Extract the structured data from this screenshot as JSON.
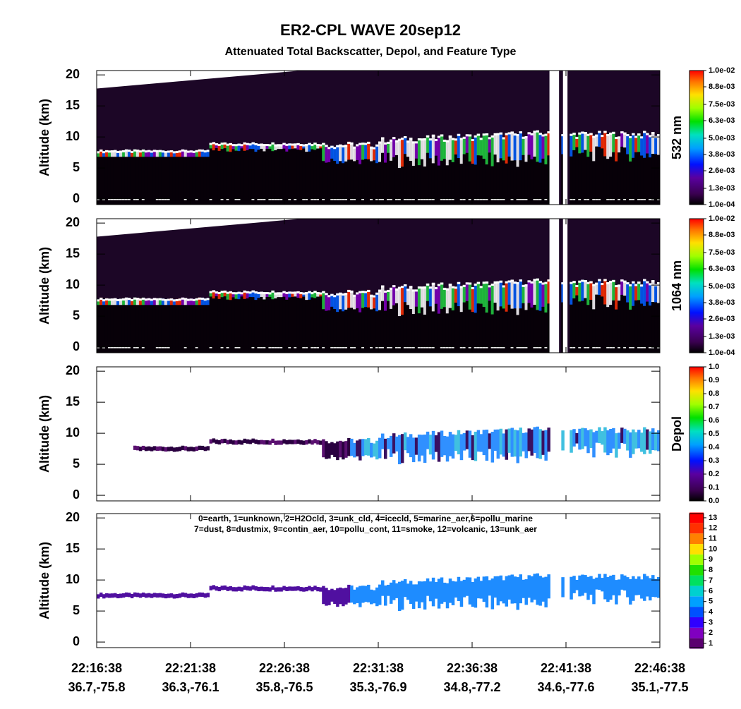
{
  "title": "ER2-CPL WAVE 20sep12",
  "subtitle": "Attenuated Total Backscatter, Depol, and Feature Type",
  "chart_data": [
    {
      "type": "heatmap",
      "y_label": "Altitude (km)",
      "ylim": [
        -0.9,
        20.7
      ],
      "yticks": [
        0,
        5,
        10,
        15,
        20
      ],
      "colorbar_label": "532 nm",
      "clim": [
        0.0001,
        0.01
      ],
      "colorbar_ticks": [
        {
          "value": 0.0001,
          "label": "1.0e-04"
        },
        {
          "value": 0.0013,
          "label": "1.3e-03"
        },
        {
          "value": 0.0026,
          "label": "2.6e-03"
        },
        {
          "value": 0.0038,
          "label": "3.8e-03"
        },
        {
          "value": 0.005,
          "label": "5.0e-03"
        },
        {
          "value": 0.0063,
          "label": "6.3e-03"
        },
        {
          "value": 0.0075,
          "label": "7.5e-03"
        },
        {
          "value": 0.0088,
          "label": "8.8e-03"
        },
        {
          "value": 0.01,
          "label": "1.0e-02"
        }
      ]
    },
    {
      "type": "heatmap",
      "y_label": "Altitude (km)",
      "ylim": [
        -0.9,
        20.7
      ],
      "yticks": [
        0,
        5,
        10,
        15,
        20
      ],
      "colorbar_label": "1064 nm",
      "clim": [
        0.0001,
        0.01
      ],
      "colorbar_ticks": [
        {
          "value": 0.0001,
          "label": "1.0e-04"
        },
        {
          "value": 0.0013,
          "label": "1.3e-03"
        },
        {
          "value": 0.0026,
          "label": "2.6e-03"
        },
        {
          "value": 0.0038,
          "label": "3.8e-03"
        },
        {
          "value": 0.005,
          "label": "5.0e-03"
        },
        {
          "value": 0.0063,
          "label": "6.3e-03"
        },
        {
          "value": 0.0075,
          "label": "7.5e-03"
        },
        {
          "value": 0.0088,
          "label": "8.8e-03"
        },
        {
          "value": 0.01,
          "label": "1.0e-02"
        }
      ]
    },
    {
      "type": "heatmap",
      "y_label": "Altitude (km)",
      "ylim": [
        -0.9,
        20.7
      ],
      "yticks": [
        0,
        5,
        10,
        15,
        20
      ],
      "colorbar_label": "Depol",
      "clim": [
        0,
        1
      ],
      "colorbar_ticks": [
        {
          "value": 0,
          "label": "0.0"
        },
        0.1,
        0.2,
        0.3,
        0.4,
        0.5,
        0.6,
        0.7,
        0.8,
        0.9,
        {
          "value": 1,
          "label": "1.0"
        }
      ]
    },
    {
      "type": "heatmap",
      "y_label": "Altitude (km)",
      "ylim": [
        -0.9,
        20.7
      ],
      "yticks": [
        0,
        5,
        10,
        15,
        20
      ],
      "clim": [
        0.6,
        13.4
      ],
      "colorbar_ticks": [
        1,
        2,
        3,
        4,
        5,
        6,
        7,
        8,
        9,
        10,
        11,
        12,
        13
      ],
      "annotation": [
        "0=earth, 1=unknown, 2=H2Ocld, 3=unk_cld, 4=icecld, 5=marine_aer,6=pollu_marine",
        "7=dust, 8=dustmix, 9=contin_aer, 10=pollu_cont, 11=smoke, 12=volcanic, 13=unk_aer"
      ],
      "categories": [
        "22:16:38",
        "22:21:38",
        "22:26:38",
        "22:31:38",
        "22:36:38",
        "22:41:38",
        "22:46:38"
      ],
      "locations": [
        "36.7,-75.8",
        "36.3,-76.1",
        "35.8,-76.5",
        "35.3,-76.9",
        "34.8,-77.2",
        "34.6,-77.6",
        "35.1,-77.5"
      ]
    }
  ]
}
